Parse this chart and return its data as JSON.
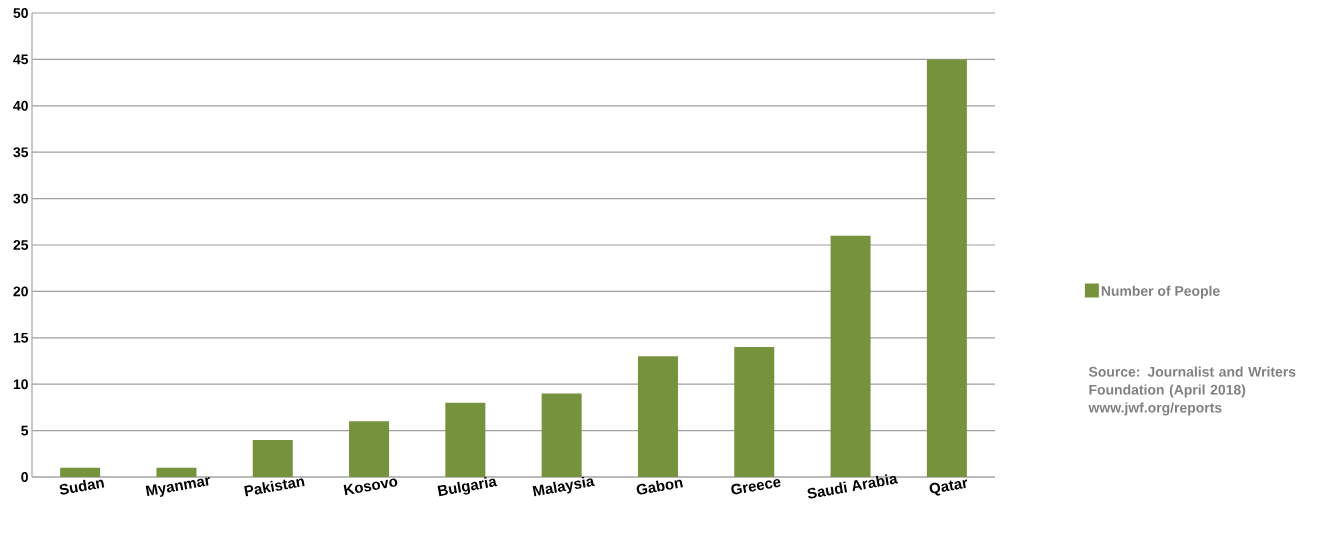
{
  "chart_data": {
    "type": "bar",
    "categories": [
      "Sudan",
      "Myanmar",
      "Pakistan",
      "Kosovo",
      "Bulgaria",
      "Malaysia",
      "Gabon",
      "Greece",
      "Saudi Arabia",
      "Qatar"
    ],
    "series": [
      {
        "name": "Number of People",
        "color": "#76923c",
        "values": [
          1,
          1,
          4,
          6,
          8,
          9,
          13,
          14,
          26,
          45
        ]
      }
    ],
    "ylim": [
      0,
      50
    ],
    "yticks": [
      0,
      5,
      10,
      15,
      20,
      25,
      30,
      35,
      40,
      45,
      50
    ],
    "grid": "y",
    "legend": "right",
    "annotations": [
      "Source: Journalist and Writers Foundation (April 2018) www.jwf.org/reports"
    ]
  }
}
